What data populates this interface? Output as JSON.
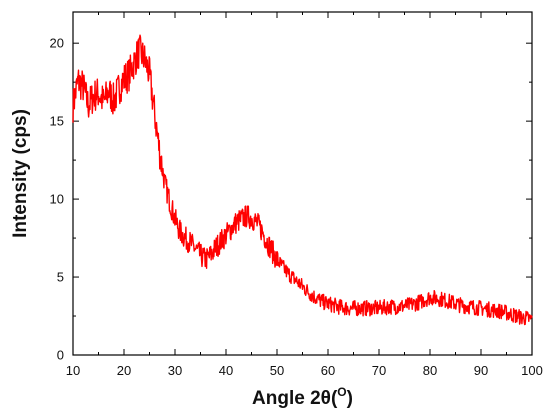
{
  "chart_data": {
    "type": "line",
    "xlabel": "Angle 2θ",
    "xlabel_unit": "O",
    "ylabel": "Intensity (cps)",
    "xlim": [
      10,
      100
    ],
    "ylim": [
      0,
      22
    ],
    "x_ticks": [
      10,
      20,
      30,
      40,
      50,
      60,
      70,
      80,
      90,
      100
    ],
    "y_ticks": [
      0,
      5,
      10,
      15,
      20
    ],
    "grid": false,
    "legend": "none",
    "series": [
      {
        "color": "#ff0000",
        "x": [
          10,
          11,
          12,
          13,
          14,
          15,
          16,
          17,
          18,
          19,
          20,
          21,
          22,
          23,
          24,
          25,
          26,
          27,
          28,
          29,
          30,
          31,
          32,
          33,
          34,
          35,
          36,
          37,
          38,
          39,
          40,
          41,
          42,
          43,
          44,
          45,
          46,
          47,
          48,
          49,
          50,
          51,
          52,
          53,
          54,
          55,
          56,
          57,
          58,
          59,
          60,
          62,
          64,
          66,
          68,
          70,
          72,
          74,
          76,
          78,
          80,
          82,
          84,
          86,
          88,
          90,
          92,
          94,
          96,
          98,
          100
        ],
        "y": [
          16.0,
          17.6,
          17.2,
          16.0,
          16.6,
          16.8,
          16.2,
          16.9,
          16.3,
          17.1,
          17.7,
          18.0,
          18.8,
          19.5,
          19.0,
          18.0,
          15.5,
          13.0,
          11.0,
          9.8,
          8.7,
          7.9,
          7.5,
          7.2,
          6.8,
          6.4,
          6.1,
          6.4,
          6.9,
          7.3,
          7.7,
          8.1,
          8.5,
          8.7,
          8.9,
          8.8,
          8.5,
          8.0,
          7.3,
          6.7,
          6.1,
          5.7,
          5.3,
          5.0,
          4.7,
          4.4,
          4.1,
          3.8,
          3.6,
          3.4,
          3.3,
          3.1,
          3.0,
          3.0,
          3.0,
          3.0,
          3.1,
          3.1,
          3.2,
          3.4,
          3.7,
          3.6,
          3.4,
          3.2,
          3.1,
          3.0,
          2.9,
          2.8,
          2.6,
          2.4,
          2.3
        ]
      }
    ]
  }
}
